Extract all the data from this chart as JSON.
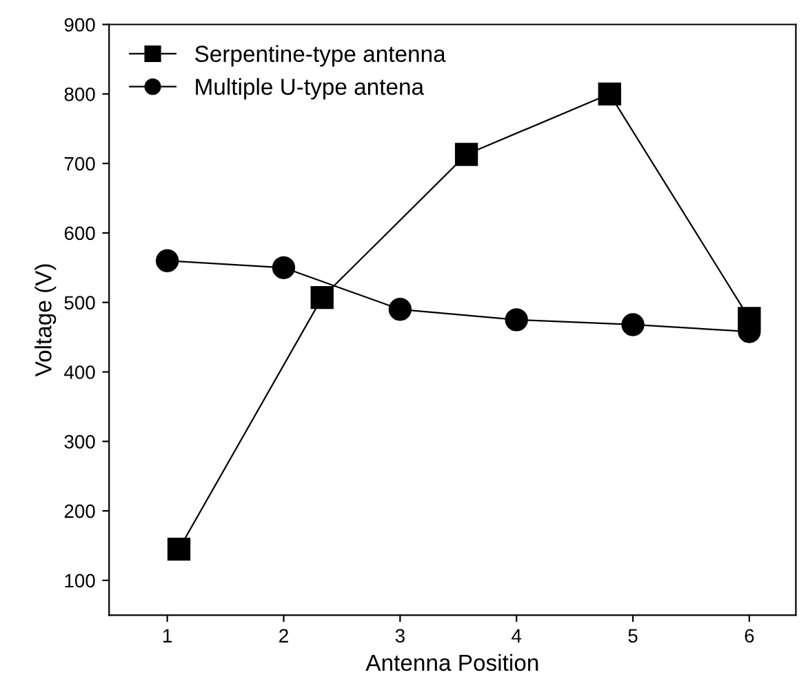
{
  "chart_data": {
    "type": "line",
    "xlabel": "Antenna Position",
    "ylabel": "Voltage (V)",
    "xlim": [
      0.5,
      6.4
    ],
    "xticks": [
      1,
      2,
      3,
      4,
      5,
      6
    ],
    "ylim": [
      50,
      900
    ],
    "yticks": [
      100,
      200,
      300,
      400,
      500,
      600,
      700,
      800,
      900
    ],
    "grid": false,
    "legend": "top left",
    "series": [
      {
        "name": "Serpentine-type antenna",
        "color": "#000000",
        "marker": "square",
        "x": [
          1.1,
          2.33,
          3.57,
          4.8,
          6.0
        ],
        "values": [
          145,
          507,
          713,
          800,
          477
        ]
      },
      {
        "name": "Multiple U-type antena",
        "color": "#000000",
        "marker": "circle",
        "x": [
          1,
          2,
          3,
          4,
          5,
          6
        ],
        "values": [
          560,
          550,
          490,
          475,
          468,
          458
        ]
      }
    ]
  }
}
